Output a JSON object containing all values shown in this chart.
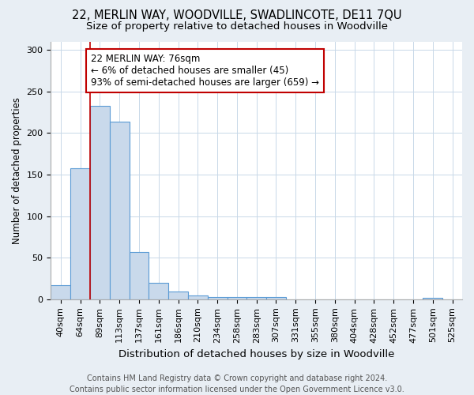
{
  "title1": "22, MERLIN WAY, WOODVILLE, SWADLINCOTE, DE11 7QU",
  "title2": "Size of property relative to detached houses in Woodville",
  "xlabel": "Distribution of detached houses by size in Woodville",
  "ylabel": "Number of detached properties",
  "categories": [
    "40sqm",
    "64sqm",
    "89sqm",
    "113sqm",
    "137sqm",
    "161sqm",
    "186sqm",
    "210sqm",
    "234sqm",
    "258sqm",
    "283sqm",
    "307sqm",
    "331sqm",
    "355sqm",
    "380sqm",
    "404sqm",
    "428sqm",
    "452sqm",
    "477sqm",
    "501sqm",
    "525sqm"
  ],
  "values": [
    17,
    158,
    233,
    214,
    57,
    20,
    9,
    5,
    3,
    3,
    3,
    3,
    0,
    0,
    0,
    0,
    0,
    0,
    0,
    2,
    0
  ],
  "bar_color": "#c9d9eb",
  "bar_edge_color": "#5b9bd5",
  "vline_x": 1.5,
  "vline_color": "#c00000",
  "annotation_text": "22 MERLIN WAY: 76sqm\n← 6% of detached houses are smaller (45)\n93% of semi-detached houses are larger (659) →",
  "annotation_box_color": "#ffffff",
  "annotation_box_edge": "#c00000",
  "ylim": [
    0,
    310
  ],
  "yticks": [
    0,
    50,
    100,
    150,
    200,
    250,
    300
  ],
  "footer": "Contains HM Land Registry data © Crown copyright and database right 2024.\nContains public sector information licensed under the Open Government Licence v3.0.",
  "bg_color": "#e8eef4",
  "plot_bg_color": "#ffffff",
  "title1_fontsize": 10.5,
  "title2_fontsize": 9.5,
  "xlabel_fontsize": 9.5,
  "ylabel_fontsize": 8.5,
  "tick_fontsize": 8,
  "footer_fontsize": 7,
  "annotation_fontsize": 8.5
}
